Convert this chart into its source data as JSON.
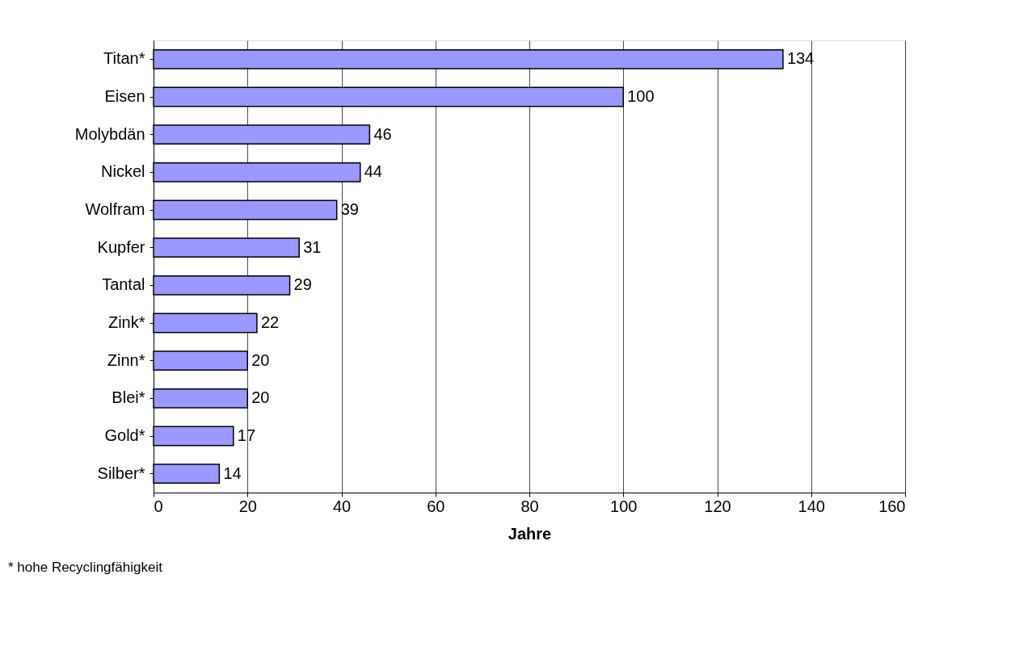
{
  "chart_data": {
    "type": "bar",
    "orientation": "horizontal",
    "xlabel": "Jahre",
    "categories": [
      "Titan*",
      "Eisen",
      "Molybdän",
      "Nickel",
      "Wolfram",
      "Kupfer",
      "Tantal",
      "Zink*",
      "Zinn*",
      "Blei*",
      "Gold*",
      "Silber*"
    ],
    "values": [
      134,
      100,
      46,
      44,
      39,
      31,
      29,
      22,
      20,
      20,
      17,
      14
    ],
    "color": "#9999ff",
    "xlim": [
      0,
      160
    ],
    "xticks": [
      0,
      20,
      40,
      60,
      80,
      100,
      120,
      140,
      160
    ],
    "grid": "x",
    "data_labels": true,
    "annotations": [
      "* hohe Recyclingfähigkeit"
    ]
  }
}
